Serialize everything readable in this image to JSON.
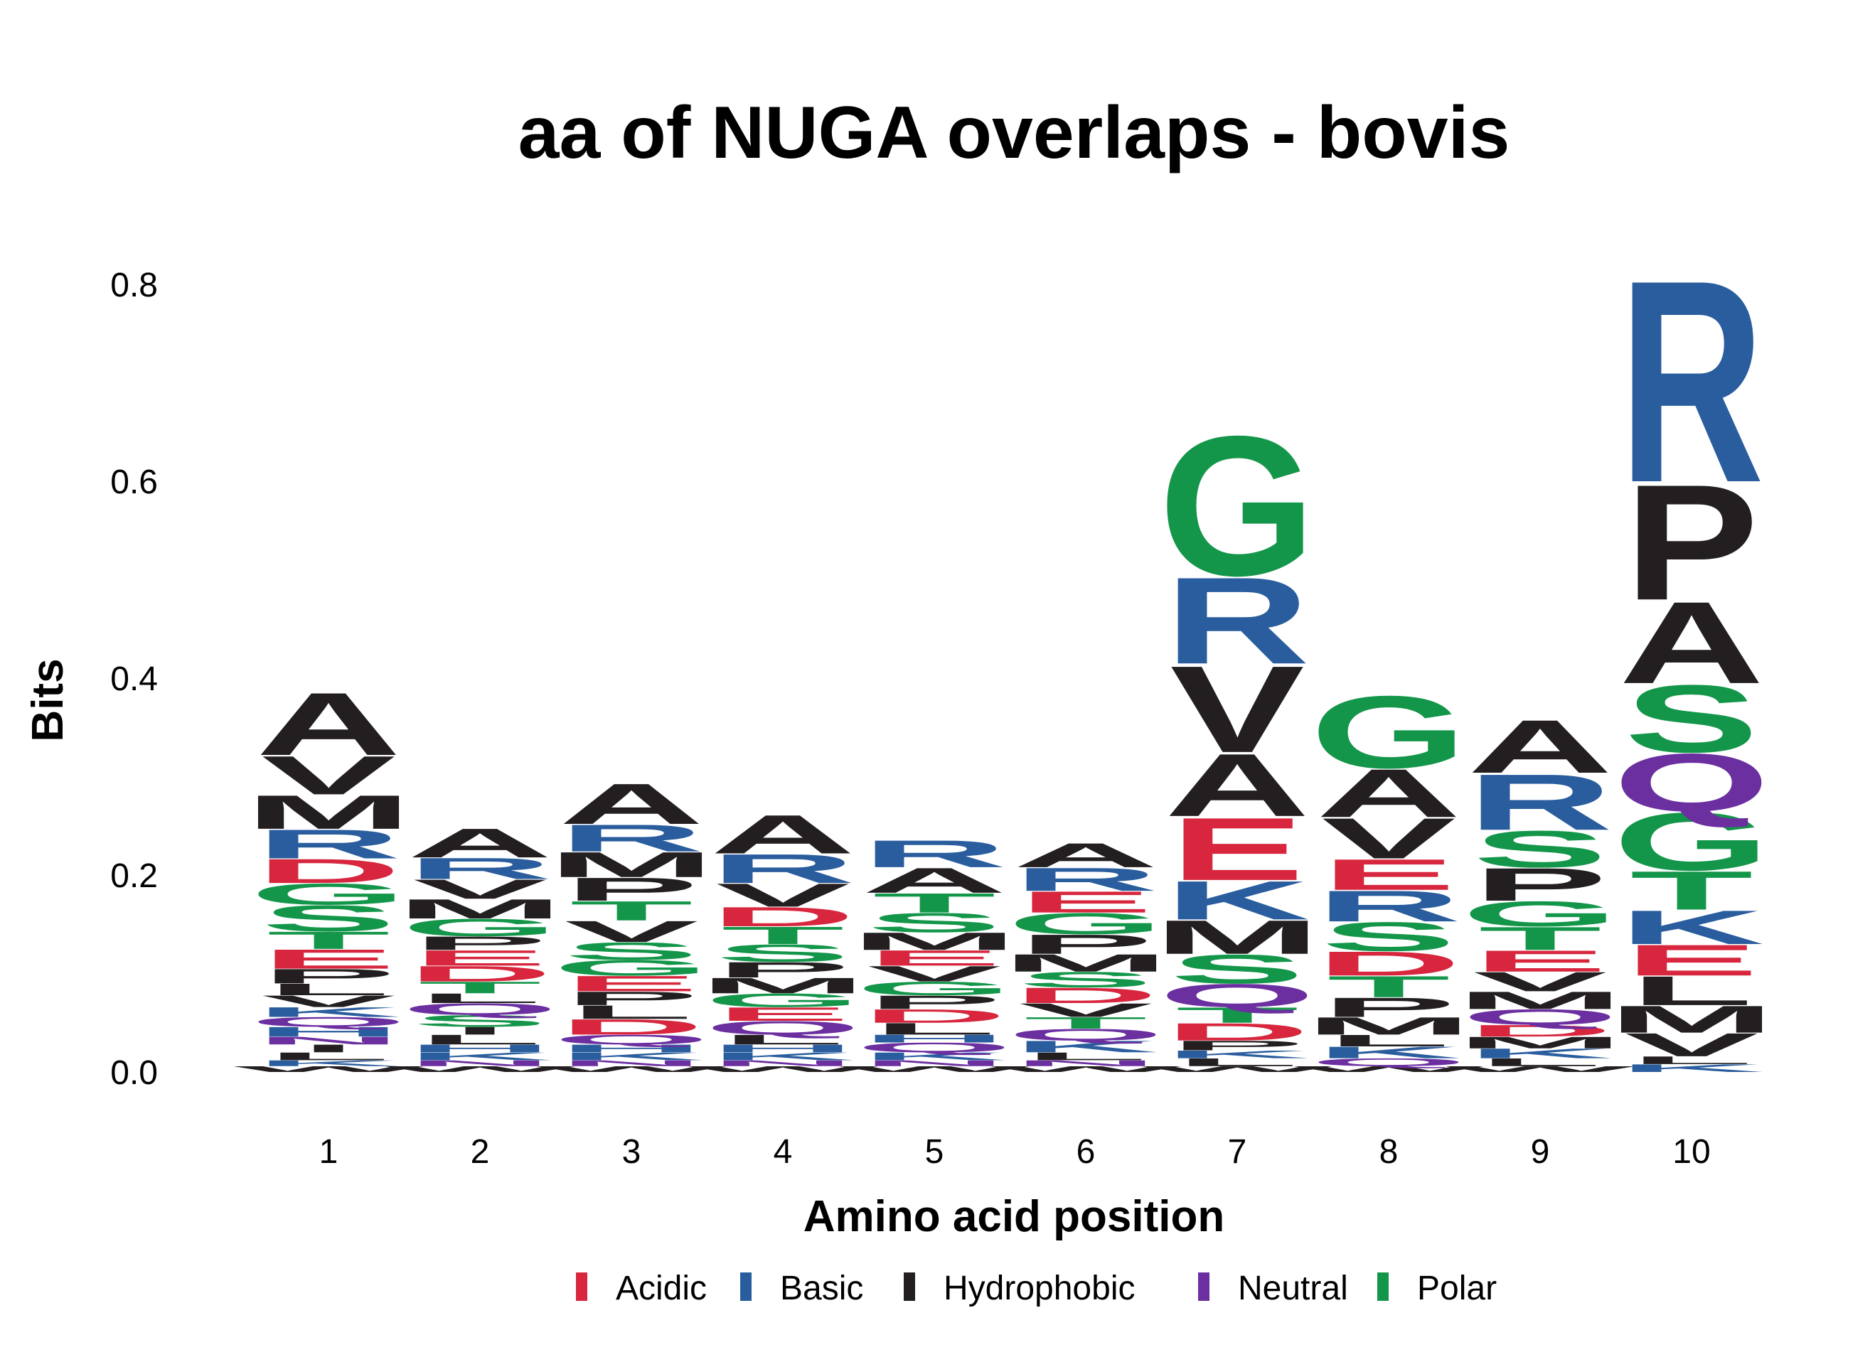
{
  "chart_data": {
    "type": "sequence-logo",
    "title": "aa of NUGA overlaps - bovis",
    "xlabel": "Amino acid position",
    "ylabel": "Bits",
    "ylim": [
      0,
      0.85
    ],
    "yticks": [
      "0.0",
      "0.2",
      "0.4",
      "0.6",
      "0.8"
    ],
    "ytick_values": [
      0,
      0.2,
      0.4,
      0.6,
      0.8
    ],
    "positions": [
      "1",
      "2",
      "3",
      "4",
      "5",
      "6",
      "7",
      "8",
      "9",
      "10"
    ],
    "legend": {
      "placement": "bottom",
      "entries": [
        {
          "label": "Acidic",
          "color": "#d7263d"
        },
        {
          "label": "Basic",
          "color": "#2a5d9e"
        },
        {
          "label": "Hydrophobic",
          "color": "#231f20"
        },
        {
          "label": "Neutral",
          "color": "#6b2fa0"
        },
        {
          "label": "Polar",
          "color": "#14964a"
        }
      ]
    },
    "colors": {
      "Acidic": "#d7263d",
      "Basic": "#2a5d9e",
      "Hydrophobic": "#231f20",
      "Neutral": "#6b2fa0",
      "Polar": "#14964a"
    },
    "residue_class": {
      "D": "Acidic",
      "E": "Acidic",
      "R": "Basic",
      "K": "Basic",
      "H": "Basic",
      "A": "Hydrophobic",
      "V": "Hydrophobic",
      "L": "Hydrophobic",
      "I": "Hydrophobic",
      "P": "Hydrophobic",
      "M": "Hydrophobic",
      "F": "Hydrophobic",
      "W": "Hydrophobic",
      "Q": "Neutral",
      "N": "Neutral",
      "G": "Polar",
      "S": "Polar",
      "T": "Polar",
      "Y": "Polar",
      "C": "Polar"
    },
    "stacks": [
      {
        "position": "1",
        "letters": [
          {
            "aa": "W",
            "bits": 0.006
          },
          {
            "aa": "K",
            "bits": 0.006
          },
          {
            "aa": "L",
            "bits": 0.008
          },
          {
            "aa": "I",
            "bits": 0.008
          },
          {
            "aa": "N",
            "bits": 0.008
          },
          {
            "aa": "H",
            "bits": 0.01
          },
          {
            "aa": "Q",
            "bits": 0.01
          },
          {
            "aa": "K",
            "bits": 0.01
          },
          {
            "aa": "V",
            "bits": 0.012
          },
          {
            "aa": "L",
            "bits": 0.012
          },
          {
            "aa": "P",
            "bits": 0.015
          },
          {
            "aa": "E",
            "bits": 0.02
          },
          {
            "aa": "T",
            "bits": 0.018
          },
          {
            "aa": "S",
            "bits": 0.027
          },
          {
            "aa": "G",
            "bits": 0.022
          },
          {
            "aa": "D",
            "bits": 0.025
          },
          {
            "aa": "R",
            "bits": 0.03
          },
          {
            "aa": "M",
            "bits": 0.035
          },
          {
            "aa": "V",
            "bits": 0.04
          },
          {
            "aa": "A",
            "bits": 0.065
          }
        ]
      },
      {
        "position": "2",
        "letters": [
          {
            "aa": "W",
            "bits": 0.006
          },
          {
            "aa": "N",
            "bits": 0.006
          },
          {
            "aa": "K",
            "bits": 0.008
          },
          {
            "aa": "H",
            "bits": 0.008
          },
          {
            "aa": "L",
            "bits": 0.01
          },
          {
            "aa": "I",
            "bits": 0.008
          },
          {
            "aa": "S",
            "bits": 0.012
          },
          {
            "aa": "Q",
            "bits": 0.012
          },
          {
            "aa": "L",
            "bits": 0.01
          },
          {
            "aa": "T",
            "bits": 0.012
          },
          {
            "aa": "D",
            "bits": 0.016
          },
          {
            "aa": "E",
            "bits": 0.016
          },
          {
            "aa": "P",
            "bits": 0.014
          },
          {
            "aa": "G",
            "bits": 0.018
          },
          {
            "aa": "M",
            "bits": 0.02
          },
          {
            "aa": "V",
            "bits": 0.02
          },
          {
            "aa": "R",
            "bits": 0.022
          },
          {
            "aa": "A",
            "bits": 0.03
          }
        ]
      },
      {
        "position": "3",
        "letters": [
          {
            "aa": "W",
            "bits": 0.006
          },
          {
            "aa": "N",
            "bits": 0.006
          },
          {
            "aa": "K",
            "bits": 0.008
          },
          {
            "aa": "H",
            "bits": 0.008
          },
          {
            "aa": "Q",
            "bits": 0.01
          },
          {
            "aa": "D",
            "bits": 0.016
          },
          {
            "aa": "L",
            "bits": 0.014
          },
          {
            "aa": "P",
            "bits": 0.014
          },
          {
            "aa": "E",
            "bits": 0.016
          },
          {
            "aa": "G",
            "bits": 0.016
          },
          {
            "aa": "S",
            "bits": 0.018
          },
          {
            "aa": "V",
            "bits": 0.022
          },
          {
            "aa": "T",
            "bits": 0.02
          },
          {
            "aa": "P",
            "bits": 0.024
          },
          {
            "aa": "M",
            "bits": 0.026
          },
          {
            "aa": "R",
            "bits": 0.028
          },
          {
            "aa": "A",
            "bits": 0.042
          }
        ]
      },
      {
        "position": "4",
        "letters": [
          {
            "aa": "W",
            "bits": 0.006
          },
          {
            "aa": "N",
            "bits": 0.006
          },
          {
            "aa": "K",
            "bits": 0.008
          },
          {
            "aa": "H",
            "bits": 0.008
          },
          {
            "aa": "L",
            "bits": 0.01
          },
          {
            "aa": "Q",
            "bits": 0.014
          },
          {
            "aa": "E",
            "bits": 0.014
          },
          {
            "aa": "G",
            "bits": 0.014
          },
          {
            "aa": "M",
            "bits": 0.016
          },
          {
            "aa": "P",
            "bits": 0.016
          },
          {
            "aa": "S",
            "bits": 0.018
          },
          {
            "aa": "T",
            "bits": 0.018
          },
          {
            "aa": "D",
            "bits": 0.02
          },
          {
            "aa": "V",
            "bits": 0.024
          },
          {
            "aa": "R",
            "bits": 0.03
          },
          {
            "aa": "A",
            "bits": 0.04
          }
        ]
      },
      {
        "position": "5",
        "letters": [
          {
            "aa": "W",
            "bits": 0.006
          },
          {
            "aa": "N",
            "bits": 0.006
          },
          {
            "aa": "K",
            "bits": 0.008
          },
          {
            "aa": "Q",
            "bits": 0.01
          },
          {
            "aa": "H",
            "bits": 0.008
          },
          {
            "aa": "L",
            "bits": 0.012
          },
          {
            "aa": "D",
            "bits": 0.014
          },
          {
            "aa": "P",
            "bits": 0.014
          },
          {
            "aa": "G",
            "bits": 0.014
          },
          {
            "aa": "V",
            "bits": 0.016
          },
          {
            "aa": "E",
            "bits": 0.016
          },
          {
            "aa": "M",
            "bits": 0.018
          },
          {
            "aa": "S",
            "bits": 0.02
          },
          {
            "aa": "T",
            "bits": 0.02
          },
          {
            "aa": "A",
            "bits": 0.026
          },
          {
            "aa": "R",
            "bits": 0.028
          }
        ]
      },
      {
        "position": "6",
        "letters": [
          {
            "aa": "W",
            "bits": 0.006
          },
          {
            "aa": "N",
            "bits": 0.006
          },
          {
            "aa": "L",
            "bits": 0.008
          },
          {
            "aa": "K",
            "bits": 0.012
          },
          {
            "aa": "Q",
            "bits": 0.012
          },
          {
            "aa": "T",
            "bits": 0.012
          },
          {
            "aa": "V",
            "bits": 0.014
          },
          {
            "aa": "D",
            "bits": 0.016
          },
          {
            "aa": "S",
            "bits": 0.016
          },
          {
            "aa": "M",
            "bits": 0.018
          },
          {
            "aa": "P",
            "bits": 0.02
          },
          {
            "aa": "G",
            "bits": 0.022
          },
          {
            "aa": "E",
            "bits": 0.022
          },
          {
            "aa": "R",
            "bits": 0.024
          },
          {
            "aa": "A",
            "bits": 0.025
          }
        ]
      },
      {
        "position": "7",
        "letters": [
          {
            "aa": "W",
            "bits": 0.006
          },
          {
            "aa": "L",
            "bits": 0.008
          },
          {
            "aa": "K",
            "bits": 0.008
          },
          {
            "aa": "P",
            "bits": 0.01
          },
          {
            "aa": "D",
            "bits": 0.018
          },
          {
            "aa": "T",
            "bits": 0.016
          },
          {
            "aa": "Q",
            "bits": 0.024
          },
          {
            "aa": "S",
            "bits": 0.03
          },
          {
            "aa": "M",
            "bits": 0.035
          },
          {
            "aa": "K",
            "bits": 0.04
          },
          {
            "aa": "E",
            "bits": 0.065
          },
          {
            "aa": "A",
            "bits": 0.065
          },
          {
            "aa": "V",
            "bits": 0.09
          },
          {
            "aa": "R",
            "bits": 0.09
          },
          {
            "aa": "G",
            "bits": 0.145
          }
        ]
      },
      {
        "position": "8",
        "letters": [
          {
            "aa": "W",
            "bits": 0.006
          },
          {
            "aa": "Q",
            "bits": 0.008
          },
          {
            "aa": "K",
            "bits": 0.012
          },
          {
            "aa": "L",
            "bits": 0.012
          },
          {
            "aa": "M",
            "bits": 0.018
          },
          {
            "aa": "P",
            "bits": 0.02
          },
          {
            "aa": "T",
            "bits": 0.022
          },
          {
            "aa": "D",
            "bits": 0.025
          },
          {
            "aa": "S",
            "bits": 0.03
          },
          {
            "aa": "R",
            "bits": 0.032
          },
          {
            "aa": "E",
            "bits": 0.032
          },
          {
            "aa": "V",
            "bits": 0.042
          },
          {
            "aa": "A",
            "bits": 0.05
          },
          {
            "aa": "G",
            "bits": 0.075
          }
        ]
      },
      {
        "position": "9",
        "letters": [
          {
            "aa": "W",
            "bits": 0.006
          },
          {
            "aa": "L",
            "bits": 0.008
          },
          {
            "aa": "K",
            "bits": 0.01
          },
          {
            "aa": "M",
            "bits": 0.012
          },
          {
            "aa": "D",
            "bits": 0.012
          },
          {
            "aa": "Q",
            "bits": 0.016
          },
          {
            "aa": "M",
            "bits": 0.018
          },
          {
            "aa": "V",
            "bits": 0.02
          },
          {
            "aa": "E",
            "bits": 0.022
          },
          {
            "aa": "T",
            "bits": 0.024
          },
          {
            "aa": "G",
            "bits": 0.026
          },
          {
            "aa": "P",
            "bits": 0.034
          },
          {
            "aa": "S",
            "bits": 0.038
          },
          {
            "aa": "R",
            "bits": 0.058
          },
          {
            "aa": "A",
            "bits": 0.055
          }
        ]
      },
      {
        "position": "10",
        "letters": [
          {
            "aa": "K",
            "bits": 0.008
          },
          {
            "aa": "L",
            "bits": 0.008
          },
          {
            "aa": "V",
            "bits": 0.024
          },
          {
            "aa": "M",
            "bits": 0.028
          },
          {
            "aa": "L",
            "bits": 0.03
          },
          {
            "aa": "E",
            "bits": 0.032
          },
          {
            "aa": "K",
            "bits": 0.035
          },
          {
            "aa": "T",
            "bits": 0.04
          },
          {
            "aa": "G",
            "bits": 0.06
          },
          {
            "aa": "Q",
            "bits": 0.06
          },
          {
            "aa": "S",
            "bits": 0.07
          },
          {
            "aa": "A",
            "bits": 0.085
          },
          {
            "aa": "P",
            "bits": 0.12
          },
          {
            "aa": "R",
            "bits": 0.21
          }
        ]
      }
    ]
  }
}
